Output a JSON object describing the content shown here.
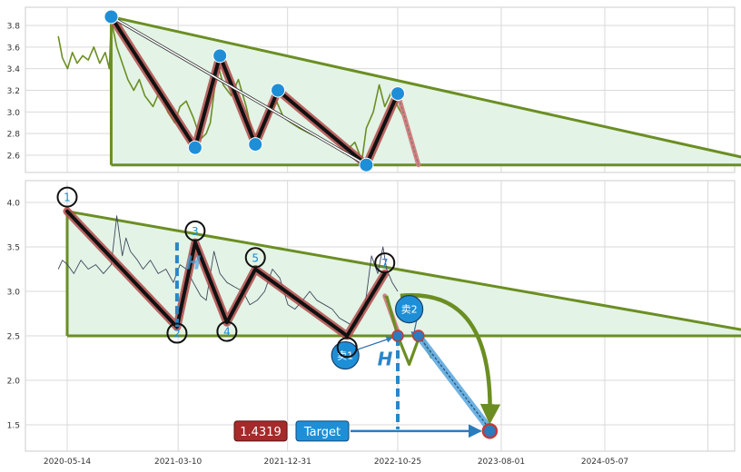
{
  "chart_data": [
    {
      "type": "line",
      "panel": "top",
      "ylim": [
        2.5,
        3.95
      ],
      "y_ticks": [
        "3.8",
        "3.6",
        "3.4",
        "3.2",
        "3.0",
        "2.8",
        "2.6"
      ],
      "grid": true,
      "series_color": "#6b8e23",
      "price": [
        [
          "2020-04-20",
          3.7
        ],
        [
          "2020-05-01",
          3.5
        ],
        [
          "2020-05-15",
          3.4
        ],
        [
          "2020-05-28",
          3.55
        ],
        [
          "2020-06-10",
          3.45
        ],
        [
          "2020-06-25",
          3.52
        ],
        [
          "2020-07-10",
          3.48
        ],
        [
          "2020-07-25",
          3.6
        ],
        [
          "2020-08-10",
          3.45
        ],
        [
          "2020-08-25",
          3.55
        ],
        [
          "2020-09-05",
          3.4
        ],
        [
          "2020-09-10",
          3.85
        ],
        [
          "2020-09-25",
          3.6
        ],
        [
          "2020-10-10",
          3.45
        ],
        [
          "2020-10-25",
          3.3
        ],
        [
          "2020-11-10",
          3.2
        ],
        [
          "2020-11-25",
          3.3
        ],
        [
          "2020-12-10",
          3.15
        ],
        [
          "2021-01-01",
          3.05
        ],
        [
          "2021-01-20",
          3.2
        ],
        [
          "2021-02-10",
          3.0
        ],
        [
          "2021-03-01",
          2.9
        ],
        [
          "2021-03-15",
          3.05
        ],
        [
          "2021-04-01",
          3.1
        ],
        [
          "2021-04-20",
          2.95
        ],
        [
          "2021-05-10",
          2.75
        ],
        [
          "2021-05-25",
          2.8
        ],
        [
          "2021-06-05",
          2.9
        ],
        [
          "2021-06-25",
          3.45
        ],
        [
          "2021-07-10",
          3.25
        ],
        [
          "2021-08-01",
          3.15
        ],
        [
          "2021-08-20",
          3.3
        ],
        [
          "2021-09-10",
          3.05
        ],
        [
          "2021-09-30",
          2.75
        ],
        [
          "2021-10-20",
          2.85
        ],
        [
          "2021-11-10",
          2.95
        ],
        [
          "2021-12-01",
          3.1
        ],
        [
          "2021-12-20",
          2.95
        ],
        [
          "2022-01-10",
          2.9
        ],
        [
          "2022-02-01",
          2.85
        ],
        [
          "2022-03-01",
          2.8
        ],
        [
          "2022-04-01",
          2.75
        ],
        [
          "2022-05-01",
          2.7
        ],
        [
          "2022-06-01",
          2.62
        ],
        [
          "2022-07-01",
          2.72
        ],
        [
          "2022-07-20",
          2.55
        ],
        [
          "2022-08-01",
          2.85
        ],
        [
          "2022-08-20",
          3.0
        ],
        [
          "2022-09-05",
          3.25
        ],
        [
          "2022-09-20",
          3.05
        ],
        [
          "2022-10-10",
          3.2
        ],
        [
          "2022-10-25",
          3.05
        ],
        [
          "2022-11-10",
          2.95
        ]
      ],
      "triangle": {
        "apex_start": [
          "2020-09-10",
          3.88
        ],
        "upper_end": [
          "2025-08-15",
          2.51
        ],
        "base": 2.51,
        "base_start": "2020-09-10"
      },
      "zigzag": [
        [
          "2020-09-10",
          3.88
        ],
        [
          "2021-04-25",
          2.67
        ],
        [
          "2021-07-01",
          3.52
        ],
        [
          "2021-10-05",
          2.7
        ],
        [
          "2021-12-05",
          3.2
        ],
        [
          "2022-08-01",
          2.51
        ],
        [
          "2022-10-25",
          3.17
        ]
      ],
      "zigzag_projection": [
        [
          "2022-10-25",
          3.17
        ],
        [
          "2022-12-20",
          2.51
        ]
      ],
      "white_lines": [
        [
          [
            "2020-09-10",
            3.88
          ],
          [
            "2022-08-01",
            2.51
          ]
        ]
      ]
    },
    {
      "type": "line",
      "panel": "bottom",
      "ylim": [
        1.2,
        4.25
      ],
      "y_ticks": [
        "4.0",
        "3.5",
        "3.0",
        "2.5",
        "2.0",
        "1.5"
      ],
      "x_ticks": [
        "2020-05-14",
        "2021-03-10",
        "2021-12-31",
        "2022-10-25",
        "2023-08-01",
        "2024-05-07"
      ],
      "grid": true,
      "series_color": "#3d4a5c",
      "price": [
        [
          "2020-04-20",
          3.25
        ],
        [
          "2020-05-01",
          3.35
        ],
        [
          "2020-05-15",
          3.3
        ],
        [
          "2020-06-01",
          3.2
        ],
        [
          "2020-06-20",
          3.35
        ],
        [
          "2020-07-10",
          3.25
        ],
        [
          "2020-07-30",
          3.3
        ],
        [
          "2020-08-20",
          3.2
        ],
        [
          "2020-09-10",
          3.3
        ],
        [
          "2020-09-25",
          3.85
        ],
        [
          "2020-10-10",
          3.4
        ],
        [
          "2020-10-20",
          3.6
        ],
        [
          "2020-11-01",
          3.45
        ],
        [
          "2020-11-20",
          3.35
        ],
        [
          "2020-12-05",
          3.25
        ],
        [
          "2020-12-25",
          3.35
        ],
        [
          "2021-01-15",
          3.2
        ],
        [
          "2021-02-05",
          3.25
        ],
        [
          "2021-02-25",
          3.1
        ],
        [
          "2021-03-15",
          3.3
        ],
        [
          "2021-04-01",
          3.25
        ],
        [
          "2021-04-20",
          3.1
        ],
        [
          "2021-05-10",
          2.95
        ],
        [
          "2021-05-25",
          2.9
        ],
        [
          "2021-06-15",
          3.45
        ],
        [
          "2021-07-01",
          3.2
        ],
        [
          "2021-07-20",
          3.1
        ],
        [
          "2021-08-10",
          3.05
        ],
        [
          "2021-09-01",
          3.0
        ],
        [
          "2021-09-20",
          2.85
        ],
        [
          "2021-10-10",
          2.9
        ],
        [
          "2021-10-30",
          3.0
        ],
        [
          "2021-11-20",
          3.25
        ],
        [
          "2021-12-10",
          3.15
        ],
        [
          "2022-01-01",
          2.85
        ],
        [
          "2022-01-20",
          2.8
        ],
        [
          "2022-02-10",
          2.9
        ],
        [
          "2022-03-01",
          3.0
        ],
        [
          "2022-03-20",
          2.9
        ],
        [
          "2022-04-10",
          2.85
        ],
        [
          "2022-05-01",
          2.8
        ],
        [
          "2022-05-20",
          2.7
        ],
        [
          "2022-06-10",
          2.65
        ],
        [
          "2022-06-30",
          2.6
        ],
        [
          "2022-07-20",
          2.7
        ],
        [
          "2022-08-01",
          2.95
        ],
        [
          "2022-08-15",
          3.4
        ],
        [
          "2022-09-01",
          3.2
        ],
        [
          "2022-09-15",
          3.5
        ],
        [
          "2022-09-25",
          3.25
        ],
        [
          "2022-10-10",
          3.1
        ],
        [
          "2022-10-25",
          3.0
        ]
      ],
      "triangle": {
        "apex_start": [
          "2020-05-14",
          3.9
        ],
        "upper_end": [
          "2025-08-15",
          2.5
        ],
        "base": 2.5,
        "base_start": "2020-05-14"
      },
      "zigzag": [
        [
          "2020-05-14",
          3.9
        ],
        [
          "2021-03-07",
          2.6
        ],
        [
          "2021-04-25",
          3.55
        ],
        [
          "2021-07-20",
          2.65
        ],
        [
          "2021-10-05",
          3.25
        ],
        [
          "2022-06-10",
          2.5
        ],
        [
          "2022-09-20",
          3.2
        ]
      ],
      "zigzag_projection": [
        [
          "2022-09-20",
          2.95
        ],
        [
          "2022-10-25",
          2.55
        ]
      ],
      "points": [
        {
          "label": "1",
          "date": "2020-05-14",
          "y": 4.06,
          "color": "#1a8ad4"
        },
        {
          "label": "2",
          "date": "2021-03-07",
          "y": 2.53,
          "color": "#1a8ad4"
        },
        {
          "label": "3",
          "date": "2021-04-25",
          "y": 3.68,
          "color": "#1a8ad4"
        },
        {
          "label": "4",
          "date": "2021-07-20",
          "y": 2.55,
          "color": "#1a8ad4"
        },
        {
          "label": "5",
          "date": "2021-10-05",
          "y": 3.38,
          "color": "#1a8ad4"
        },
        {
          "label": "6",
          "date": "2022-06-10",
          "y": 2.37,
          "color": "#1a8ad4"
        },
        {
          "label": "7",
          "date": "2022-09-20",
          "y": 3.32,
          "color": "#1a8ad4"
        }
      ],
      "measure_H": {
        "label": "H",
        "date_left": "2021-03-07",
        "y_top": 3.55,
        "y_bottom": 2.55,
        "date_right": "2022-10-25",
        "y_right_top": 2.48,
        "y_right_bottom": 1.45
      },
      "forecast_zig": [
        [
          "2022-09-25",
          2.95
        ],
        [
          "2022-10-25",
          2.5
        ],
        [
          "2022-11-25",
          2.18
        ],
        [
          "2022-12-25",
          2.52
        ],
        [
          "2023-01-25",
          2.25
        ]
      ],
      "forecast_arrow_curve": {
        "from": [
          "2022-11-01",
          2.95
        ],
        "to": [
          "2023-07-01",
          1.55
        ]
      },
      "sell_markers": [
        {
          "label": "卖1",
          "date": "2022-06-05",
          "y": 2.28,
          "target": [
            "2022-10-25",
            2.5
          ]
        },
        {
          "label": "卖2",
          "date": "2022-11-25",
          "y": 2.8,
          "target": [
            "2022-12-20",
            2.5
          ]
        }
      ],
      "blue_path": [
        [
          "2022-12-20",
          2.5
        ],
        [
          "2023-07-01",
          1.45
        ]
      ],
      "target": {
        "price": "1.4319",
        "label": "Target",
        "date": "2023-07-01",
        "y": 1.43
      }
    }
  ]
}
